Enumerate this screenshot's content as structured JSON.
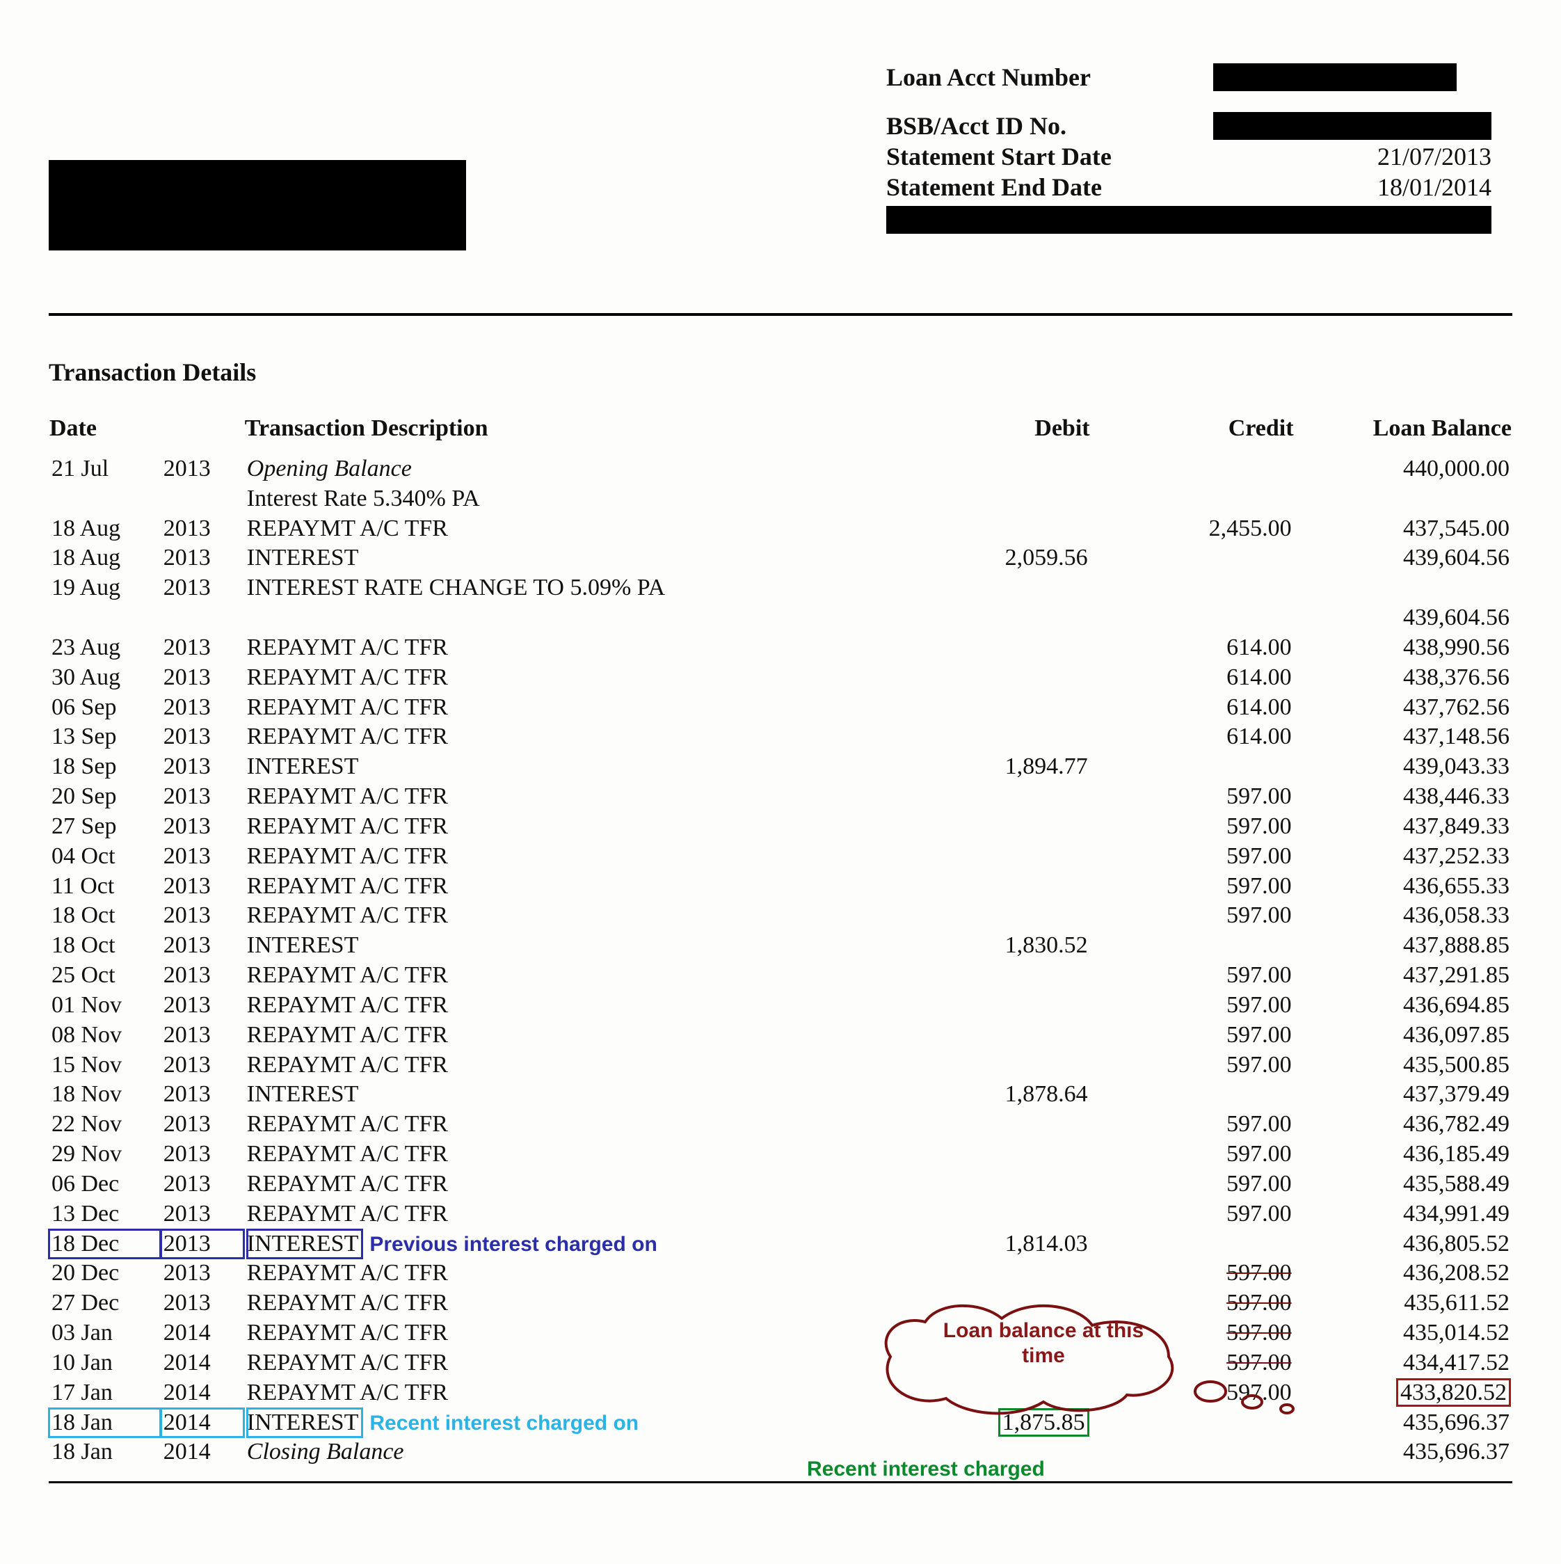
{
  "header": {
    "loan_acct_label": "Loan Acct Number",
    "bsb_label": "BSB/Acct ID No.",
    "start_label": "Statement Start Date",
    "end_label": "Statement End Date",
    "start_date": "21/07/2013",
    "end_date": "18/01/2014"
  },
  "section_title": "Transaction Details",
  "columns": {
    "date": "Date",
    "desc": "Transaction Description",
    "debit": "Debit",
    "credit": "Credit",
    "balance": "Loan Balance"
  },
  "rows": [
    {
      "d1": "21 Jul",
      "d2": "2013",
      "desc": "Opening Balance",
      "sub": "Interest Rate 5.340% PA",
      "debit": "",
      "credit": "",
      "bal": "440,000.00",
      "italic": true
    },
    {
      "d1": "18 Aug",
      "d2": "2013",
      "desc": "REPAYMT A/C TFR",
      "debit": "",
      "credit": "2,455.00",
      "bal": "437,545.00"
    },
    {
      "d1": "18 Aug",
      "d2": "2013",
      "desc": "INTEREST",
      "debit": "2,059.56",
      "credit": "",
      "bal": "439,604.56"
    },
    {
      "d1": "19 Aug",
      "d2": "2013",
      "desc": "INTEREST RATE CHANGE TO  5.09% PA",
      "debit": "",
      "credit": "",
      "bal": ""
    },
    {
      "d1": "",
      "d2": "",
      "desc": "",
      "debit": "",
      "credit": "",
      "bal": "439,604.56"
    },
    {
      "d1": "23 Aug",
      "d2": "2013",
      "desc": "REPAYMT A/C TFR",
      "debit": "",
      "credit": "614.00",
      "bal": "438,990.56"
    },
    {
      "d1": "30 Aug",
      "d2": "2013",
      "desc": "REPAYMT A/C TFR",
      "debit": "",
      "credit": "614.00",
      "bal": "438,376.56"
    },
    {
      "d1": "06 Sep",
      "d2": "2013",
      "desc": "REPAYMT A/C TFR",
      "debit": "",
      "credit": "614.00",
      "bal": "437,762.56"
    },
    {
      "d1": "13 Sep",
      "d2": "2013",
      "desc": "REPAYMT A/C TFR",
      "debit": "",
      "credit": "614.00",
      "bal": "437,148.56"
    },
    {
      "d1": "18 Sep",
      "d2": "2013",
      "desc": "INTEREST",
      "debit": "1,894.77",
      "credit": "",
      "bal": "439,043.33"
    },
    {
      "d1": "20 Sep",
      "d2": "2013",
      "desc": "REPAYMT A/C TFR",
      "debit": "",
      "credit": "597.00",
      "bal": "438,446.33"
    },
    {
      "d1": "27 Sep",
      "d2": "2013",
      "desc": "REPAYMT A/C TFR",
      "debit": "",
      "credit": "597.00",
      "bal": "437,849.33"
    },
    {
      "d1": "04 Oct",
      "d2": "2013",
      "desc": "REPAYMT A/C TFR",
      "debit": "",
      "credit": "597.00",
      "bal": "437,252.33"
    },
    {
      "d1": "11 Oct",
      "d2": "2013",
      "desc": "REPAYMT A/C TFR",
      "debit": "",
      "credit": "597.00",
      "bal": "436,655.33"
    },
    {
      "d1": "18 Oct",
      "d2": "2013",
      "desc": "REPAYMT A/C TFR",
      "debit": "",
      "credit": "597.00",
      "bal": "436,058.33"
    },
    {
      "d1": "18 Oct",
      "d2": "2013",
      "desc": "INTEREST",
      "debit": "1,830.52",
      "credit": "",
      "bal": "437,888.85"
    },
    {
      "d1": "25 Oct",
      "d2": "2013",
      "desc": "REPAYMT A/C TFR",
      "debit": "",
      "credit": "597.00",
      "bal": "437,291.85"
    },
    {
      "d1": "01 Nov",
      "d2": "2013",
      "desc": "REPAYMT A/C TFR",
      "debit": "",
      "credit": "597.00",
      "bal": "436,694.85"
    },
    {
      "d1": "08 Nov",
      "d2": "2013",
      "desc": "REPAYMT A/C TFR",
      "debit": "",
      "credit": "597.00",
      "bal": "436,097.85"
    },
    {
      "d1": "15 Nov",
      "d2": "2013",
      "desc": "REPAYMT A/C TFR",
      "debit": "",
      "credit": "597.00",
      "bal": "435,500.85"
    },
    {
      "d1": "18 Nov",
      "d2": "2013",
      "desc": "INTEREST",
      "debit": "1,878.64",
      "credit": "",
      "bal": "437,379.49"
    },
    {
      "d1": "22 Nov",
      "d2": "2013",
      "desc": "REPAYMT A/C TFR",
      "debit": "",
      "credit": "597.00",
      "bal": "436,782.49"
    },
    {
      "d1": "29 Nov",
      "d2": "2013",
      "desc": "REPAYMT A/C TFR",
      "debit": "",
      "credit": "597.00",
      "bal": "436,185.49"
    },
    {
      "d1": "06 Dec",
      "d2": "2013",
      "desc": "REPAYMT A/C TFR",
      "debit": "",
      "credit": "597.00",
      "bal": "435,588.49"
    },
    {
      "d1": "13 Dec",
      "d2": "2013",
      "desc": "REPAYMT A/C TFR",
      "debit": "",
      "credit": "597.00",
      "bal": "434,991.49"
    },
    {
      "d1": "18 Dec",
      "d2": "2013",
      "desc": "INTEREST",
      "debit": "1,814.03",
      "credit": "",
      "bal": "436,805.52",
      "hl": "blue",
      "note": "Previous interest charged on"
    },
    {
      "d1": "20 Dec",
      "d2": "2013",
      "desc": "REPAYMT A/C TFR",
      "debit": "",
      "credit": "597.00",
      "bal": "436,208.52",
      "strike_credit": true
    },
    {
      "d1": "27 Dec",
      "d2": "2013",
      "desc": "REPAYMT A/C TFR",
      "debit": "",
      "credit": "597.00",
      "bal": "435,611.52",
      "strike_credit": true
    },
    {
      "d1": "03 Jan",
      "d2": "2014",
      "desc": "REPAYMT A/C TFR",
      "debit": "",
      "credit": "597.00",
      "bal": "435,014.52",
      "strike_credit": true
    },
    {
      "d1": "10 Jan",
      "d2": "2014",
      "desc": "REPAYMT A/C TFR",
      "debit": "",
      "credit": "597.00",
      "bal": "434,417.52",
      "strike_credit": true
    },
    {
      "d1": "17 Jan",
      "d2": "2014",
      "desc": "REPAYMT A/C TFR",
      "debit": "",
      "credit": "597.00",
      "bal": "433,820.52",
      "box_bal": "red"
    },
    {
      "d1": "18 Jan",
      "d2": "2014",
      "desc": "INTEREST",
      "debit": "1,875.85",
      "credit": "",
      "bal": "435,696.37",
      "hl": "cyan",
      "note": "Recent interest charged on",
      "box_debit": "green"
    },
    {
      "d1": "18 Jan",
      "d2": "2014",
      "desc": "Closing Balance",
      "debit": "",
      "credit": "",
      "bal": "435,696.37",
      "italic": true
    }
  ],
  "annotations": {
    "cloud_text": "Loan balance at this time",
    "green_caption": "Recent interest charged",
    "colors": {
      "blue": "#2a2ea8",
      "cyan": "#2bb3e6",
      "green": "#0a8a2a",
      "red": "#a01818",
      "cloud_stroke": "#7a1010"
    }
  }
}
